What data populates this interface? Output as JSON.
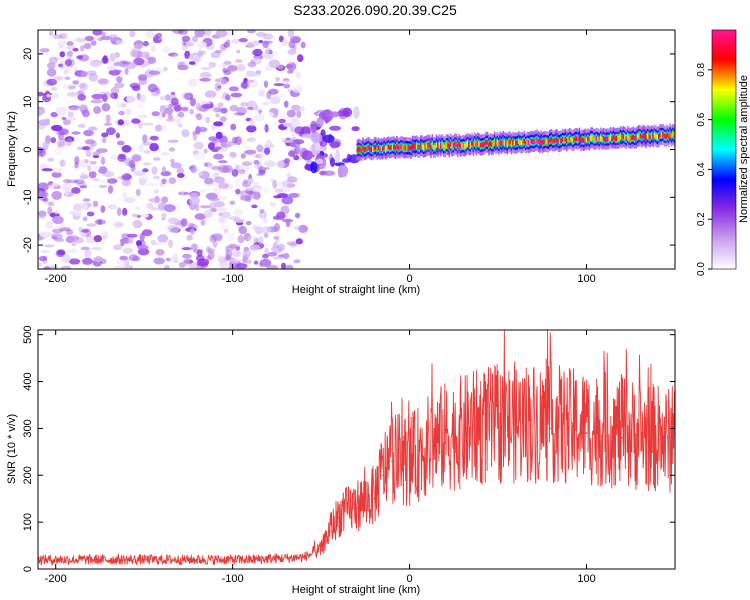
{
  "title": "S233.2026.090.20.39.C25",
  "chart_data": [
    {
      "type": "heatmap",
      "xlabel": "Height of straight line (km)",
      "ylabel": "Frequency (Hz)",
      "xlim": [
        -210,
        150
      ],
      "ylim": [
        -25,
        25
      ],
      "xticks": [
        -200,
        -100,
        0,
        100
      ],
      "yticks": [
        -20,
        -10,
        0,
        10,
        20
      ],
      "colorbar": {
        "label": "Normalized spectral amplitude",
        "range": [
          0,
          0.96
        ],
        "ticks": [
          0,
          0.2,
          0.4,
          0.6,
          0.8
        ],
        "tick_labels": [
          "0.0",
          "0.2",
          "0.4",
          "0.6",
          "0.8"
        ],
        "colormap": [
          "#ffffff",
          "#c8a0f0",
          "#8a2be2",
          "#0000ff",
          "#00ffff",
          "#00ff00",
          "#ffff00",
          "#ff0000",
          "#ff1493"
        ]
      },
      "description_regions": [
        {
          "x_range": [
            -210,
            -60
          ],
          "freq_range": [
            -25,
            25
          ],
          "amplitude": 0.1
        },
        {
          "x_range": [
            -60,
            -30
          ],
          "freq_range": [
            -5,
            8
          ],
          "amplitude": 0.2
        },
        {
          "x_range": [
            -30,
            150
          ],
          "center_freq_start": 0,
          "center_freq_end": 3,
          "amplitude": 0.9
        }
      ]
    },
    {
      "type": "line",
      "xlabel": "Height of straight line (km)",
      "ylabel": "SNR (10 * v/v)",
      "xlim": [
        -210,
        150
      ],
      "ylim": [
        0,
        510
      ],
      "xticks": [
        -200,
        -100,
        0,
        100
      ],
      "yticks": [
        0,
        100,
        200,
        300,
        400,
        500
      ],
      "series": [
        {
          "color": "#e83a3a",
          "x": [
            -210,
            -180,
            -150,
            -120,
            -90,
            -60,
            -50,
            -45,
            -40,
            -30,
            -20,
            -15,
            -10,
            0,
            10,
            20,
            40,
            60,
            80,
            90,
            100,
            120,
            150
          ],
          "y": [
            20,
            20,
            20,
            20,
            20,
            25,
            40,
            80,
            110,
            130,
            150,
            200,
            230,
            220,
            250,
            270,
            290,
            300,
            300,
            290,
            290,
            280,
            260
          ]
        }
      ]
    }
  ]
}
